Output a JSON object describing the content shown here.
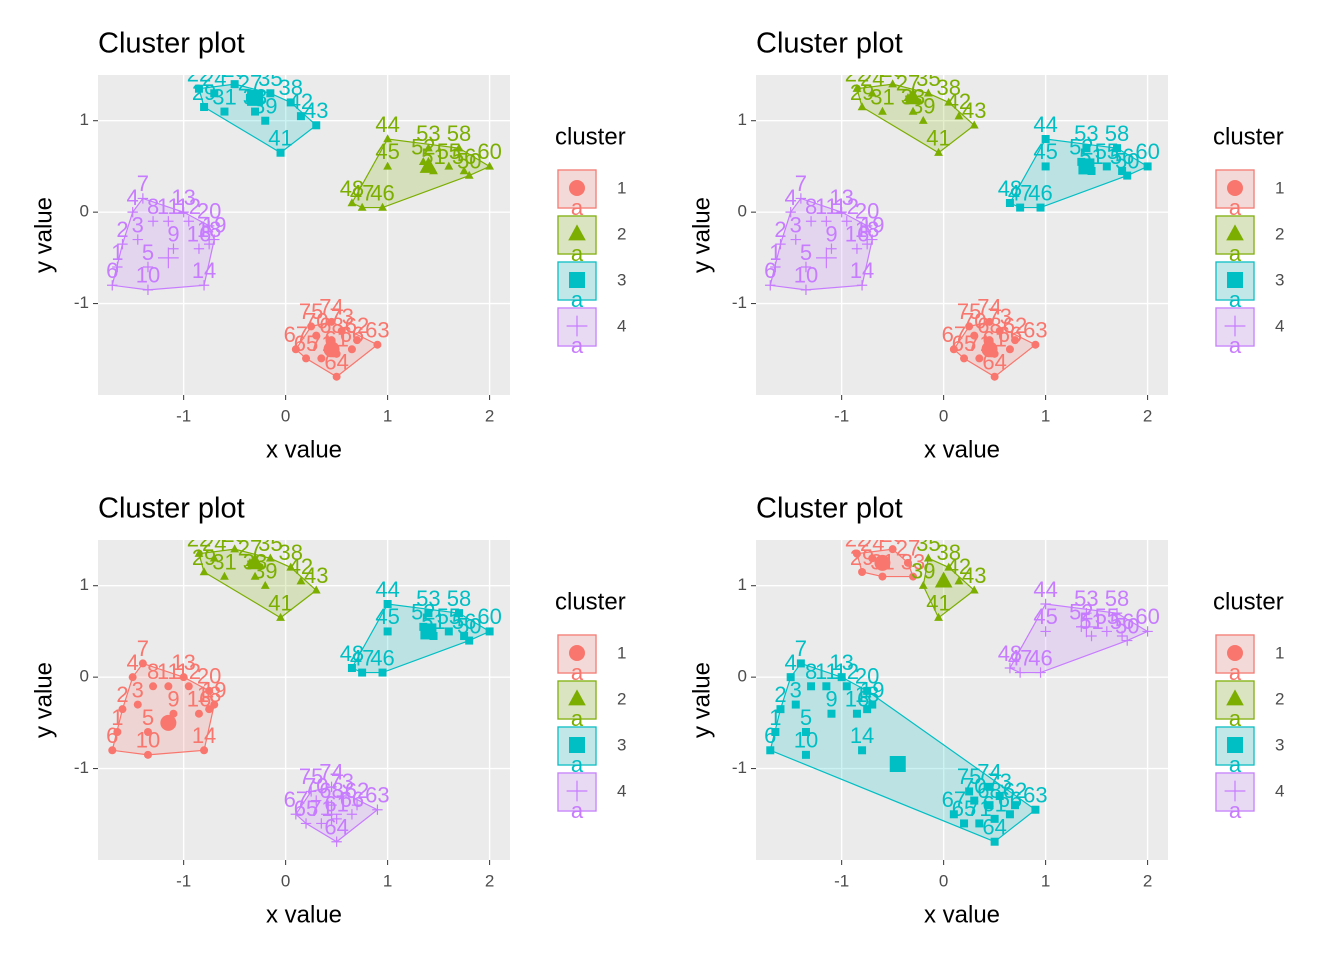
{
  "chart_data": [
    {
      "type": "cluster",
      "title": "Cluster plot",
      "x_label": "x value",
      "y_label": "y value",
      "legend_title": "cluster",
      "legend_key_text": "a",
      "xlim": [
        -1.84,
        2.2
      ],
      "ylim": [
        -2.0,
        1.5
      ],
      "xticks": [
        -1,
        0,
        1,
        2
      ],
      "yticks": [
        -1,
        0,
        1
      ],
      "grid": true,
      "series": [
        {
          "name": "1",
          "color": "#F8766D",
          "shape": "circle",
          "center": [
            0.45,
            -1.5
          ],
          "labels": [
            "61",
            "62",
            "63",
            "64",
            "65",
            "66",
            "67",
            "68",
            "70",
            "71",
            "73",
            "74",
            "75"
          ],
          "x": [
            0.5,
            0.7,
            0.9,
            0.5,
            0.2,
            0.65,
            0.1,
            0.45,
            0.3,
            0.35,
            0.55,
            0.45,
            0.25
          ],
          "y": [
            -1.55,
            -1.4,
            -1.45,
            -1.8,
            -1.6,
            -1.5,
            -1.5,
            -1.4,
            -1.35,
            -1.6,
            -1.3,
            -1.2,
            -1.25
          ]
        },
        {
          "name": "2",
          "color": "#7CAE00",
          "shape": "triangle",
          "center": [
            1.4,
            0.5
          ],
          "labels": [
            "44",
            "45",
            "46",
            "47",
            "48",
            "50",
            "51",
            "52",
            "53",
            "55",
            "56",
            "58",
            "60"
          ],
          "x": [
            1.0,
            1.0,
            0.95,
            0.75,
            0.65,
            1.8,
            1.45,
            1.35,
            1.4,
            1.6,
            1.75,
            1.7,
            2.0
          ],
          "y": [
            0.8,
            0.5,
            0.05,
            0.05,
            0.1,
            0.4,
            0.45,
            0.55,
            0.7,
            0.5,
            0.45,
            0.7,
            0.5
          ]
        },
        {
          "name": "3",
          "color": "#00BFC4",
          "shape": "square",
          "center": [
            -0.3,
            1.25
          ],
          "labels": [
            "22",
            "24",
            "25",
            "27",
            "29",
            "31",
            "33",
            "35",
            "38",
            "39",
            "41",
            "42",
            "43"
          ],
          "x": [
            -0.85,
            -0.7,
            -0.5,
            -0.35,
            -0.8,
            -0.6,
            -0.3,
            -0.15,
            0.05,
            -0.2,
            -0.05,
            0.15,
            0.3
          ],
          "y": [
            1.35,
            1.3,
            1.4,
            1.25,
            1.15,
            1.1,
            1.1,
            1.3,
            1.2,
            1.0,
            0.65,
            1.05,
            0.95
          ]
        },
        {
          "name": "4",
          "color": "#C77CFF",
          "shape": "plus",
          "center": [
            -1.15,
            -0.5
          ],
          "labels": [
            "1",
            "2",
            "3",
            "4",
            "5",
            "6",
            "7",
            "8",
            "9",
            "10",
            "11",
            "12",
            "13",
            "14",
            "16",
            "18",
            "19",
            "20"
          ],
          "x": [
            -1.65,
            -1.6,
            -1.45,
            -1.5,
            -1.35,
            -1.7,
            -1.4,
            -1.3,
            -1.1,
            -1.35,
            -1.15,
            -0.95,
            -1.0,
            -0.8,
            -0.85,
            -0.75,
            -0.7,
            -0.75
          ],
          "y": [
            -0.6,
            -0.35,
            -0.3,
            0.0,
            -0.6,
            -0.8,
            0.15,
            -0.1,
            -0.4,
            -0.85,
            -0.1,
            -0.1,
            0.0,
            -0.8,
            -0.4,
            -0.35,
            -0.3,
            -0.15
          ]
        }
      ]
    },
    {
      "type": "cluster",
      "title": "Cluster plot",
      "x_label": "x value",
      "y_label": "y value",
      "legend_title": "cluster",
      "legend_key_text": "a",
      "xlim": [
        -1.84,
        2.2
      ],
      "ylim": [
        -2.0,
        1.5
      ],
      "xticks": [
        -1,
        0,
        1,
        2
      ],
      "yticks": [
        -1,
        0,
        1
      ],
      "grid": true,
      "series": [
        {
          "name": "1",
          "color": "#F8766D",
          "shape": "circle",
          "center": [
            0.45,
            -1.5
          ],
          "labels": [
            "61",
            "62",
            "63",
            "64",
            "65",
            "66",
            "67",
            "68",
            "70",
            "71",
            "73",
            "74",
            "75"
          ],
          "x": [
            0.5,
            0.7,
            0.9,
            0.5,
            0.2,
            0.65,
            0.1,
            0.45,
            0.3,
            0.35,
            0.55,
            0.45,
            0.25
          ],
          "y": [
            -1.55,
            -1.4,
            -1.45,
            -1.8,
            -1.6,
            -1.5,
            -1.5,
            -1.4,
            -1.35,
            -1.6,
            -1.3,
            -1.2,
            -1.25
          ]
        },
        {
          "name": "2",
          "color": "#7CAE00",
          "shape": "triangle",
          "center": [
            -0.3,
            1.25
          ],
          "labels": [
            "22",
            "24",
            "25",
            "27",
            "29",
            "31",
            "33",
            "35",
            "38",
            "39",
            "41",
            "42",
            "43"
          ],
          "x": [
            -0.85,
            -0.7,
            -0.5,
            -0.35,
            -0.8,
            -0.6,
            -0.3,
            -0.15,
            0.05,
            -0.2,
            -0.05,
            0.15,
            0.3
          ],
          "y": [
            1.35,
            1.3,
            1.4,
            1.25,
            1.15,
            1.1,
            1.1,
            1.3,
            1.2,
            1.0,
            0.65,
            1.05,
            0.95
          ]
        },
        {
          "name": "3",
          "color": "#00BFC4",
          "shape": "square",
          "center": [
            1.4,
            0.5
          ],
          "labels": [
            "44",
            "45",
            "46",
            "47",
            "48",
            "50",
            "51",
            "52",
            "53",
            "55",
            "56",
            "58",
            "60"
          ],
          "x": [
            1.0,
            1.0,
            0.95,
            0.75,
            0.65,
            1.8,
            1.45,
            1.35,
            1.4,
            1.6,
            1.75,
            1.7,
            2.0
          ],
          "y": [
            0.8,
            0.5,
            0.05,
            0.05,
            0.1,
            0.4,
            0.45,
            0.55,
            0.7,
            0.5,
            0.45,
            0.7,
            0.5
          ]
        },
        {
          "name": "4",
          "color": "#C77CFF",
          "shape": "plus",
          "center": [
            -1.15,
            -0.5
          ],
          "labels": [
            "1",
            "2",
            "3",
            "4",
            "5",
            "6",
            "7",
            "8",
            "9",
            "10",
            "11",
            "12",
            "13",
            "14",
            "16",
            "18",
            "19",
            "20"
          ],
          "x": [
            -1.65,
            -1.6,
            -1.45,
            -1.5,
            -1.35,
            -1.7,
            -1.4,
            -1.3,
            -1.1,
            -1.35,
            -1.15,
            -0.95,
            -1.0,
            -0.8,
            -0.85,
            -0.75,
            -0.7,
            -0.75
          ],
          "y": [
            -0.6,
            -0.35,
            -0.3,
            0.0,
            -0.6,
            -0.8,
            0.15,
            -0.1,
            -0.4,
            -0.85,
            -0.1,
            -0.1,
            0.0,
            -0.8,
            -0.4,
            -0.35,
            -0.3,
            -0.15
          ]
        }
      ]
    },
    {
      "type": "cluster",
      "title": "Cluster plot",
      "x_label": "x value",
      "y_label": "y value",
      "legend_title": "cluster",
      "legend_key_text": "a",
      "xlim": [
        -1.84,
        2.2
      ],
      "ylim": [
        -2.0,
        1.5
      ],
      "xticks": [
        -1,
        0,
        1,
        2
      ],
      "yticks": [
        -1,
        0,
        1
      ],
      "grid": true,
      "series": [
        {
          "name": "1",
          "color": "#F8766D",
          "shape": "circle",
          "center": [
            -1.15,
            -0.5
          ],
          "labels": [
            "1",
            "2",
            "3",
            "4",
            "5",
            "6",
            "7",
            "8",
            "9",
            "10",
            "11",
            "12",
            "13",
            "14",
            "16",
            "18",
            "19",
            "20"
          ],
          "x": [
            -1.65,
            -1.6,
            -1.45,
            -1.5,
            -1.35,
            -1.7,
            -1.4,
            -1.3,
            -1.1,
            -1.35,
            -1.15,
            -0.95,
            -1.0,
            -0.8,
            -0.85,
            -0.75,
            -0.7,
            -0.75
          ],
          "y": [
            -0.6,
            -0.35,
            -0.3,
            0.0,
            -0.6,
            -0.8,
            0.15,
            -0.1,
            -0.4,
            -0.85,
            -0.1,
            -0.1,
            0.0,
            -0.8,
            -0.4,
            -0.35,
            -0.3,
            -0.15
          ]
        },
        {
          "name": "2",
          "color": "#7CAE00",
          "shape": "triangle",
          "center": [
            -0.3,
            1.25
          ],
          "labels": [
            "22",
            "24",
            "25",
            "27",
            "29",
            "31",
            "33",
            "35",
            "38",
            "39",
            "41",
            "42",
            "43"
          ],
          "x": [
            -0.85,
            -0.7,
            -0.5,
            -0.35,
            -0.8,
            -0.6,
            -0.3,
            -0.15,
            0.05,
            -0.2,
            -0.05,
            0.15,
            0.3
          ],
          "y": [
            1.35,
            1.3,
            1.4,
            1.25,
            1.15,
            1.1,
            1.1,
            1.3,
            1.2,
            1.0,
            0.65,
            1.05,
            0.95
          ]
        },
        {
          "name": "3",
          "color": "#00BFC4",
          "shape": "square",
          "center": [
            1.4,
            0.5
          ],
          "labels": [
            "44",
            "45",
            "46",
            "47",
            "48",
            "50",
            "51",
            "52",
            "53",
            "55",
            "56",
            "58",
            "60"
          ],
          "x": [
            1.0,
            1.0,
            0.95,
            0.75,
            0.65,
            1.8,
            1.45,
            1.35,
            1.4,
            1.6,
            1.75,
            1.7,
            2.0
          ],
          "y": [
            0.8,
            0.5,
            0.05,
            0.05,
            0.1,
            0.4,
            0.45,
            0.55,
            0.7,
            0.5,
            0.45,
            0.7,
            0.5
          ]
        },
        {
          "name": "4",
          "color": "#C77CFF",
          "shape": "plus",
          "center": [
            0.45,
            -1.5
          ],
          "labels": [
            "61",
            "62",
            "63",
            "64",
            "65",
            "66",
            "67",
            "68",
            "70",
            "71",
            "73",
            "74",
            "75"
          ],
          "x": [
            0.5,
            0.7,
            0.9,
            0.5,
            0.2,
            0.65,
            0.1,
            0.45,
            0.3,
            0.35,
            0.55,
            0.45,
            0.25
          ],
          "y": [
            -1.55,
            -1.4,
            -1.45,
            -1.8,
            -1.6,
            -1.5,
            -1.5,
            -1.4,
            -1.35,
            -1.6,
            -1.3,
            -1.2,
            -1.25
          ]
        }
      ]
    },
    {
      "type": "cluster",
      "title": "Cluster plot",
      "x_label": "x value",
      "y_label": "y value",
      "legend_title": "cluster",
      "legend_key_text": "a",
      "xlim": [
        -1.84,
        2.2
      ],
      "ylim": [
        -2.0,
        1.5
      ],
      "xticks": [
        -1,
        0,
        1,
        2
      ],
      "yticks": [
        -1,
        0,
        1
      ],
      "grid": true,
      "series": [
        {
          "name": "1",
          "color": "#F8766D",
          "shape": "circle",
          "center": [
            -0.6,
            1.25
          ],
          "labels": [
            "22",
            "24",
            "25",
            "27",
            "29",
            "31",
            "33"
          ],
          "x": [
            -0.85,
            -0.7,
            -0.5,
            -0.35,
            -0.8,
            -0.6,
            -0.3
          ],
          "y": [
            1.35,
            1.3,
            1.4,
            1.25,
            1.15,
            1.1,
            1.1
          ]
        },
        {
          "name": "2",
          "color": "#7CAE00",
          "shape": "triangle",
          "center": [
            0.0,
            1.05
          ],
          "labels": [
            "35",
            "38",
            "39",
            "41",
            "42",
            "43"
          ],
          "x": [
            -0.15,
            0.05,
            -0.2,
            -0.05,
            0.15,
            0.3
          ],
          "y": [
            1.3,
            1.2,
            1.0,
            0.65,
            1.05,
            0.95
          ]
        },
        {
          "name": "3",
          "color": "#00BFC4",
          "shape": "square",
          "center": [
            -0.45,
            -0.95
          ],
          "labels": [
            "1",
            "2",
            "3",
            "4",
            "5",
            "6",
            "7",
            "8",
            "9",
            "10",
            "11",
            "12",
            "13",
            "14",
            "16",
            "18",
            "19",
            "20",
            "61",
            "62",
            "63",
            "64",
            "65",
            "66",
            "67",
            "68",
            "70",
            "71",
            "73",
            "74",
            "75"
          ],
          "x": [
            -1.65,
            -1.6,
            -1.45,
            -1.5,
            -1.35,
            -1.7,
            -1.4,
            -1.3,
            -1.1,
            -1.35,
            -1.15,
            -0.95,
            -1.0,
            -0.8,
            -0.85,
            -0.75,
            -0.7,
            -0.75,
            0.5,
            0.7,
            0.9,
            0.5,
            0.2,
            0.65,
            0.1,
            0.45,
            0.3,
            0.35,
            0.55,
            0.45,
            0.25
          ],
          "y": [
            -0.6,
            -0.35,
            -0.3,
            0.0,
            -0.6,
            -0.8,
            0.15,
            -0.1,
            -0.4,
            -0.85,
            -0.1,
            -0.1,
            0.0,
            -0.8,
            -0.4,
            -0.35,
            -0.3,
            -0.15,
            -1.55,
            -1.4,
            -1.45,
            -1.8,
            -1.6,
            -1.5,
            -1.5,
            -1.4,
            -1.35,
            -1.6,
            -1.3,
            -1.2,
            -1.25
          ]
        },
        {
          "name": "4",
          "color": "#C77CFF",
          "shape": "plus",
          "center": [
            1.4,
            0.55
          ],
          "labels": [
            "44",
            "45",
            "46",
            "47",
            "48",
            "50",
            "51",
            "52",
            "53",
            "55",
            "56",
            "58",
            "60"
          ],
          "x": [
            1.0,
            1.0,
            0.95,
            0.75,
            0.65,
            1.8,
            1.45,
            1.35,
            1.4,
            1.6,
            1.75,
            1.7,
            2.0
          ],
          "y": [
            0.8,
            0.5,
            0.05,
            0.05,
            0.1,
            0.4,
            0.45,
            0.55,
            0.7,
            0.5,
            0.45,
            0.7,
            0.5
          ]
        }
      ]
    }
  ]
}
